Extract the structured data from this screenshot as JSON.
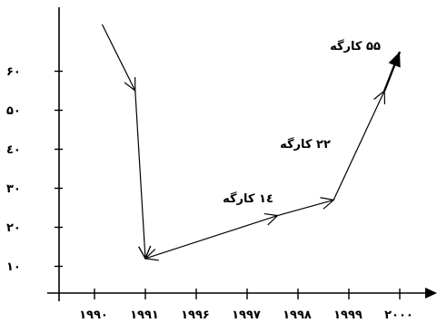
{
  "chart_data": {
    "type": "line",
    "x_tick_labels": [
      "۱۹۹۰",
      "۱۹۹۱",
      "۱۹۹۶",
      "۱۹۹۷",
      "۱۹۹۸",
      "۱۹۹۹",
      "۲۰۰۰"
    ],
    "y_tick_labels": [
      "۱۰",
      "۲۰",
      "۳۰",
      "٤۰",
      "۵۰",
      "۶۰"
    ],
    "y_values": [
      10,
      20,
      30,
      40,
      50,
      60
    ],
    "ylim": [
      0,
      70
    ],
    "grid": false,
    "series": [
      {
        "points": [
          {
            "x": 1.15,
            "y": 72
          },
          {
            "x": 1.8,
            "y": 55
          },
          {
            "x": 2.0,
            "y": 12
          },
          {
            "x": 4.6,
            "y": 23
          },
          {
            "x": 5.7,
            "y": 27
          },
          {
            "x": 6.7,
            "y": 55
          },
          {
            "x": 7.0,
            "y": 65
          }
        ]
      }
    ],
    "annotations": [
      {
        "text": "۱٤ کارگه",
        "value": 14
      },
      {
        "text": "۲۲ کارگه",
        "value": 22
      },
      {
        "text": "۵۵ کارگه",
        "value": 55
      }
    ]
  }
}
